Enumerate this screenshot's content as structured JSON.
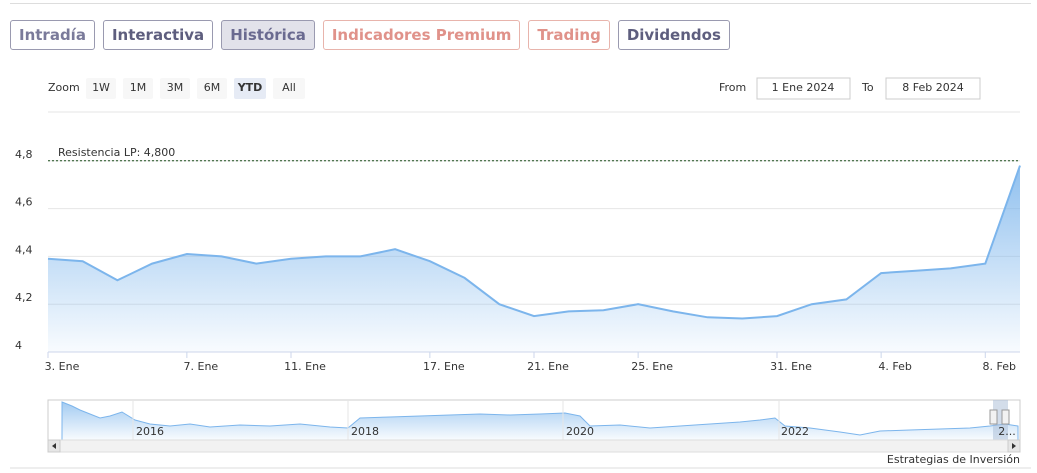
{
  "tabs": [
    "Intradía",
    "Interactiva",
    "Histórica",
    "Indicadores Premium",
    "Trading",
    "Dividendos"
  ],
  "zoom": {
    "label": "Zoom",
    "buttons": [
      "1W",
      "1M",
      "3M",
      "6M",
      "YTD",
      "All"
    ]
  },
  "range": {
    "from_label": "From",
    "from": "1 Ene 2024",
    "to_label": "To",
    "to": "8 Feb 2024"
  },
  "chart_data": {
    "type": "line",
    "color": "#7cb5ec",
    "categories": [
      "3. Ene",
      null,
      null,
      null,
      "7. Ene",
      null,
      null,
      "11. Ene",
      null,
      null,
      null,
      "17. Ene",
      null,
      null,
      "21. Ene",
      null,
      null,
      "25. Ene",
      null,
      null,
      null,
      "31. Ene",
      null,
      null,
      "4. Feb",
      null,
      null,
      "8. Feb",
      null
    ],
    "values": [
      4.39,
      4.38,
      4.3,
      4.37,
      4.41,
      4.4,
      4.37,
      4.39,
      4.4,
      4.4,
      4.43,
      4.38,
      4.31,
      4.2,
      4.15,
      4.17,
      4.175,
      4.2,
      4.17,
      4.145,
      4.14,
      4.15,
      4.2,
      4.22,
      4.33,
      4.34,
      4.35,
      4.37,
      4.78
    ],
    "ylim": [
      4,
      5
    ],
    "yticks": [
      4,
      {
        "value": 4.2,
        "label": "4,2"
      },
      {
        "value": 4.4,
        "label": "4,4"
      },
      {
        "value": 4.6,
        "label": "4,6"
      },
      {
        "value": 4.8,
        "label": "4,8"
      }
    ],
    "grid": true,
    "resistance": {
      "label": "Resistencia LP: 4,800",
      "value": 4.8
    },
    "navigator_labels": [
      "2016",
      "2018",
      "2020",
      "2022",
      "2..."
    ],
    "credits": "Estrategias de Inversión"
  }
}
